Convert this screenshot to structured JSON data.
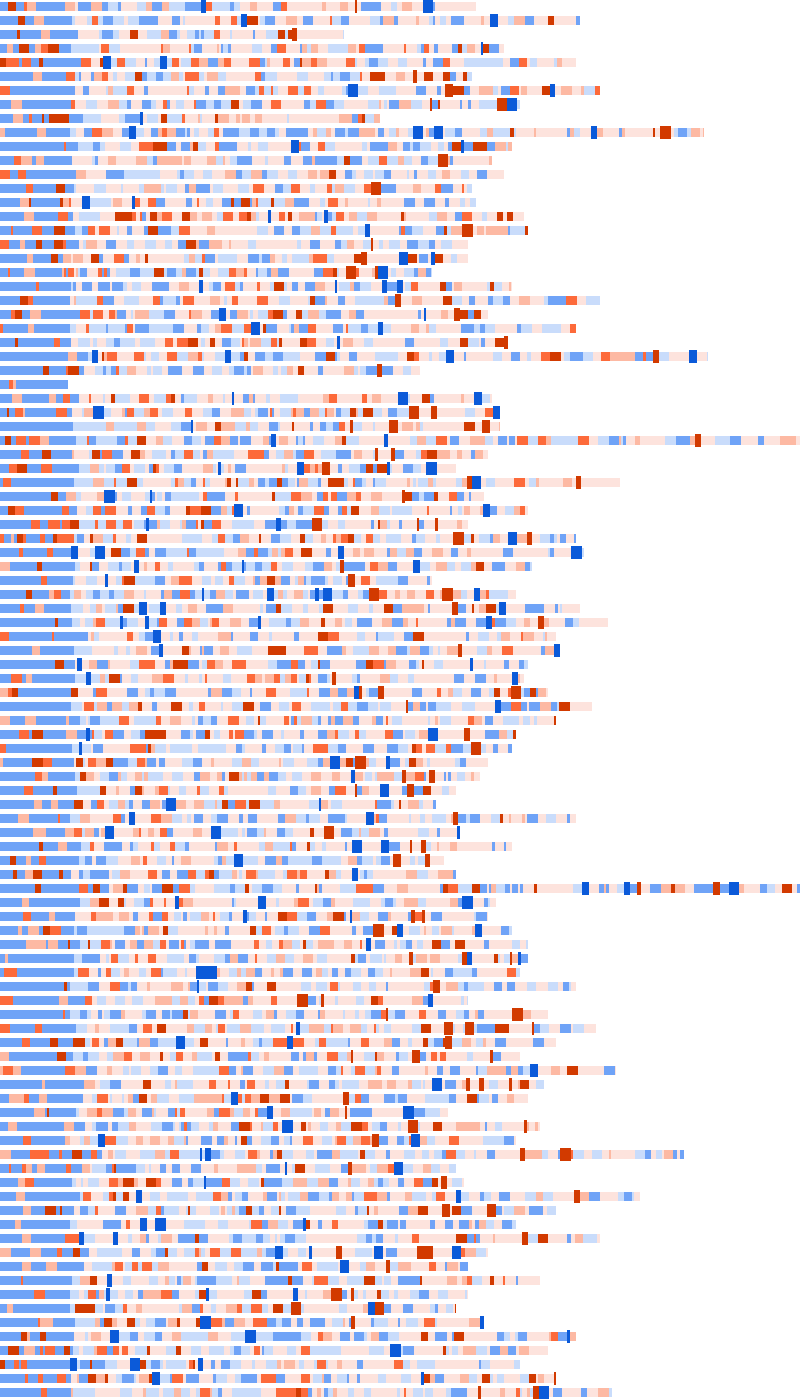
{
  "visualization": {
    "kind": "token-attribution-heatmap",
    "colors": {
      "negative_strong": "#0b5ad9",
      "negative_mid": "#6fa3f7",
      "negative_light": "#c9dcfb",
      "neutral": "#fde3dd",
      "positive_light": "#fdb9a3",
      "positive_mid": "#fd6a3a",
      "positive_strong": "#d23a00"
    },
    "rows_token_counts": [
      119,
      145,
      86,
      126,
      144,
      118,
      150,
      130,
      95,
      176,
      128,
      123,
      126,
      118,
      119,
      131,
      132,
      117,
      117,
      108,
      128,
      150,
      122,
      144,
      127,
      177,
      105,
      17,
      123,
      125,
      125,
      200,
      122,
      114,
      155,
      121,
      132,
      117,
      144,
      146,
      133,
      108,
      129,
      145,
      152,
      139,
      140,
      132,
      131,
      137,
      148,
      139,
      129,
      128,
      122,
      120,
      114,
      109,
      144,
      115,
      128,
      111,
      114,
      200,
      124,
      122,
      128,
      132,
      132,
      130,
      144,
      117,
      137,
      149,
      139,
      130,
      154,
      136,
      132,
      112,
      135,
      129,
      171,
      114,
      116,
      160,
      139,
      129,
      150,
      122,
      117,
      135,
      117,
      114,
      121,
      144,
      137,
      130,
      139,
      153
    ]
  }
}
